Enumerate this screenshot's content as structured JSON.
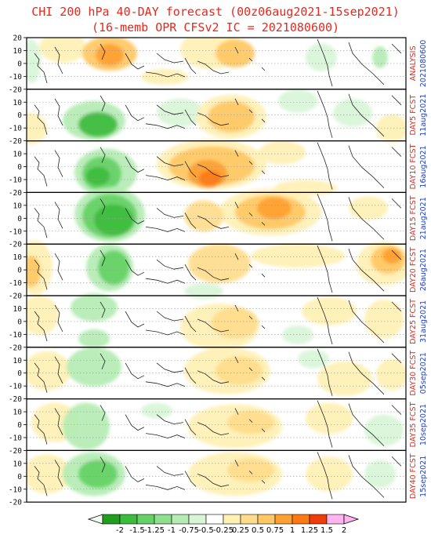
{
  "title": {
    "line1": "CHI 200 hPa 40-DAY forecast (00z06aug2021-15sep2021)",
    "line2": "(16-memb OPR CFSv2 IC = 2021080600)"
  },
  "colors": {
    "title": "#e8281e",
    "label_line1": "#e8281e",
    "label_line2": "#2140c8"
  },
  "y_tick_labels": [
    "20",
    "10",
    "0",
    "-10",
    "-20"
  ],
  "panels": [
    {
      "line1": "ANALYSIS",
      "line2": "2021080600"
    },
    {
      "line1": "DAY5 FCST",
      "line2": "11aug2021"
    },
    {
      "line1": "DAY10 FCST",
      "line2": "16aug2021"
    },
    {
      "line1": "DAY15 FCST",
      "line2": "21aug2021"
    },
    {
      "line1": "DAY20 FCST",
      "line2": "26aug2021"
    },
    {
      "line1": "DAY25 FCST",
      "line2": "31aug2021"
    },
    {
      "line1": "DAY30 FCST",
      "line2": "05sep2021"
    },
    {
      "line1": "DAY35 FCST",
      "line2": "10sep2021"
    },
    {
      "line1": "DAY40 FCST",
      "line2": "15sep2021"
    }
  ],
  "colorbar": {
    "labels": [
      "-2",
      "-1.5",
      "-1.25",
      "-1",
      "-0.75",
      "-0.5",
      "-0.25",
      "0.25",
      "0.5",
      "0.75",
      "1",
      "1.25",
      "1.5",
      "2"
    ],
    "colors": [
      "#1ea01e",
      "#3cbc3c",
      "#64d264",
      "#8ee08e",
      "#b4ecb4",
      "#d8f5d8",
      "#ffffff",
      "#fff0b4",
      "#ffdc8c",
      "#ffc864",
      "#ffa032",
      "#ff7814",
      "#f03c0a",
      "#ffb4f0"
    ],
    "left_arrow_color": "#f0fff0",
    "right_arrow_color": "#ffb4f0"
  }
}
